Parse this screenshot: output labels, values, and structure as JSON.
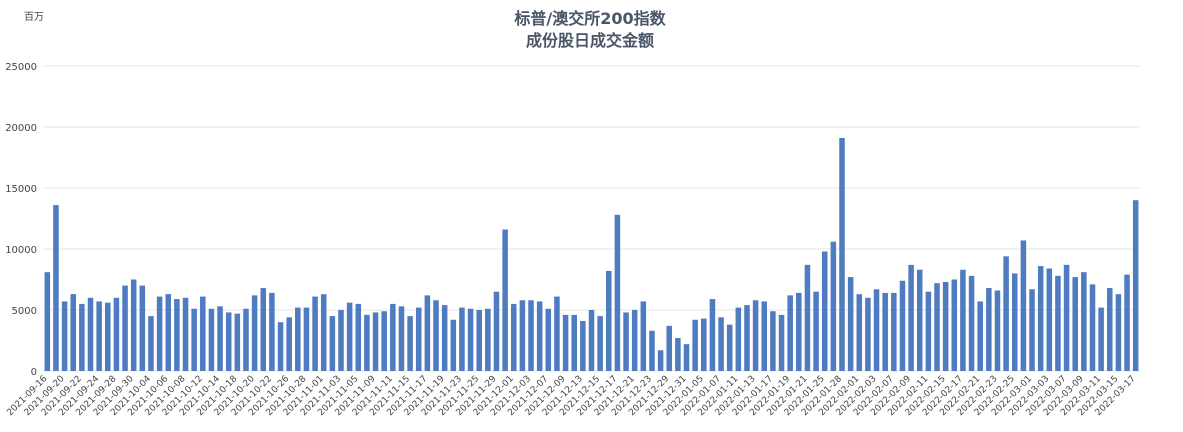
{
  "chart_data": {
    "type": "bar",
    "title": "标普/澳交所200指数",
    "subtitle": "成份股日成交金额",
    "y_label": "百万",
    "categories": [
      "2021-09-16",
      null,
      "2021-09-20",
      null,
      "2021-09-22",
      null,
      "2021-09-24",
      null,
      "2021-09-28",
      null,
      "2021-09-30",
      null,
      "2021-10-04",
      null,
      "2021-10-06",
      null,
      "2021-10-08",
      null,
      "2021-10-12",
      null,
      "2021-10-14",
      null,
      "2021-10-18",
      null,
      "2021-10-20",
      null,
      "2021-10-22",
      null,
      "2021-10-26",
      null,
      "2021-10-28",
      null,
      "2021-11-01",
      null,
      "2021-11-03",
      null,
      "2021-11-05",
      null,
      "2021-11-09",
      null,
      "2021-11-11",
      null,
      "2021-11-15",
      null,
      "2021-11-17",
      null,
      "2021-11-19",
      null,
      "2021-11-23",
      null,
      "2021-11-25",
      null,
      "2021-11-29",
      null,
      "2021-12-01",
      null,
      "2021-12-03",
      null,
      "2021-12-07",
      null,
      "2021-12-09",
      null,
      "2021-12-13",
      null,
      "2021-12-15",
      null,
      "2021-12-17",
      null,
      "2021-12-21",
      null,
      "2021-12-23",
      null,
      "2021-12-29",
      null,
      "2021-12-31",
      null,
      "2022-01-05",
      null,
      "2022-01-07",
      null,
      "2022-01-11",
      null,
      "2022-01-13",
      null,
      "2022-01-17",
      null,
      "2022-01-19",
      null,
      "2022-01-21",
      null,
      "2022-01-25",
      null,
      "2022-01-28",
      null,
      "2022-02-01",
      null,
      "2022-02-03",
      null,
      "2022-02-07",
      null,
      "2022-02-09",
      null,
      "2022-02-11",
      null,
      "2022-02-15",
      null,
      "2022-02-17",
      null,
      "2022-02-21",
      null,
      "2022-02-23",
      null,
      "2022-02-25",
      null,
      "2022-03-01",
      null,
      "2022-03-03",
      null,
      "2022-03-07",
      null,
      "2022-03-09",
      null,
      "2022-03-11",
      null,
      "2022-03-15",
      null,
      "2022-03-17"
    ],
    "values": [
      8100,
      13600,
      5700,
      6300,
      5500,
      6000,
      5700,
      5600,
      6000,
      7000,
      7500,
      7000,
      4500,
      6100,
      6300,
      5900,
      6000,
      5100,
      6100,
      5100,
      5300,
      4800,
      4700,
      5100,
      6200,
      6800,
      6400,
      4000,
      4400,
      5200,
      5200,
      6100,
      6300,
      4500,
      5000,
      5600,
      5500,
      4600,
      4800,
      4900,
      5500,
      5300,
      4500,
      5200,
      6200,
      5800,
      5400,
      4200,
      5200,
      5100,
      5000,
      5100,
      6500,
      11600,
      5500,
      5800,
      5800,
      5700,
      5100,
      6100,
      4600,
      4600,
      4100,
      5000,
      4500,
      8200,
      12800,
      4800,
      5000,
      5700,
      3300,
      1700,
      3700,
      2700,
      2200,
      4200,
      4300,
      5900,
      4400,
      3800,
      5200,
      5400,
      5800,
      5700,
      4900,
      4600,
      6200,
      6400,
      8700,
      6500,
      9800,
      10600,
      19100,
      7700,
      6300,
      6000,
      6700,
      6400,
      6400,
      7400,
      8700,
      8300,
      6500,
      7200,
      7300,
      7500,
      8300,
      7800,
      5700,
      6800,
      6600,
      9400,
      8000,
      10700,
      6700,
      8600,
      8400,
      7800,
      8700,
      7700,
      8100,
      7100,
      5200,
      6800,
      6300,
      7900,
      14000
    ],
    "color": "#4f7cc1",
    "ylim": [
      0,
      25000
    ],
    "yticks": [
      0,
      5000,
      10000,
      15000,
      20000,
      25000
    ],
    "grid": true
  }
}
